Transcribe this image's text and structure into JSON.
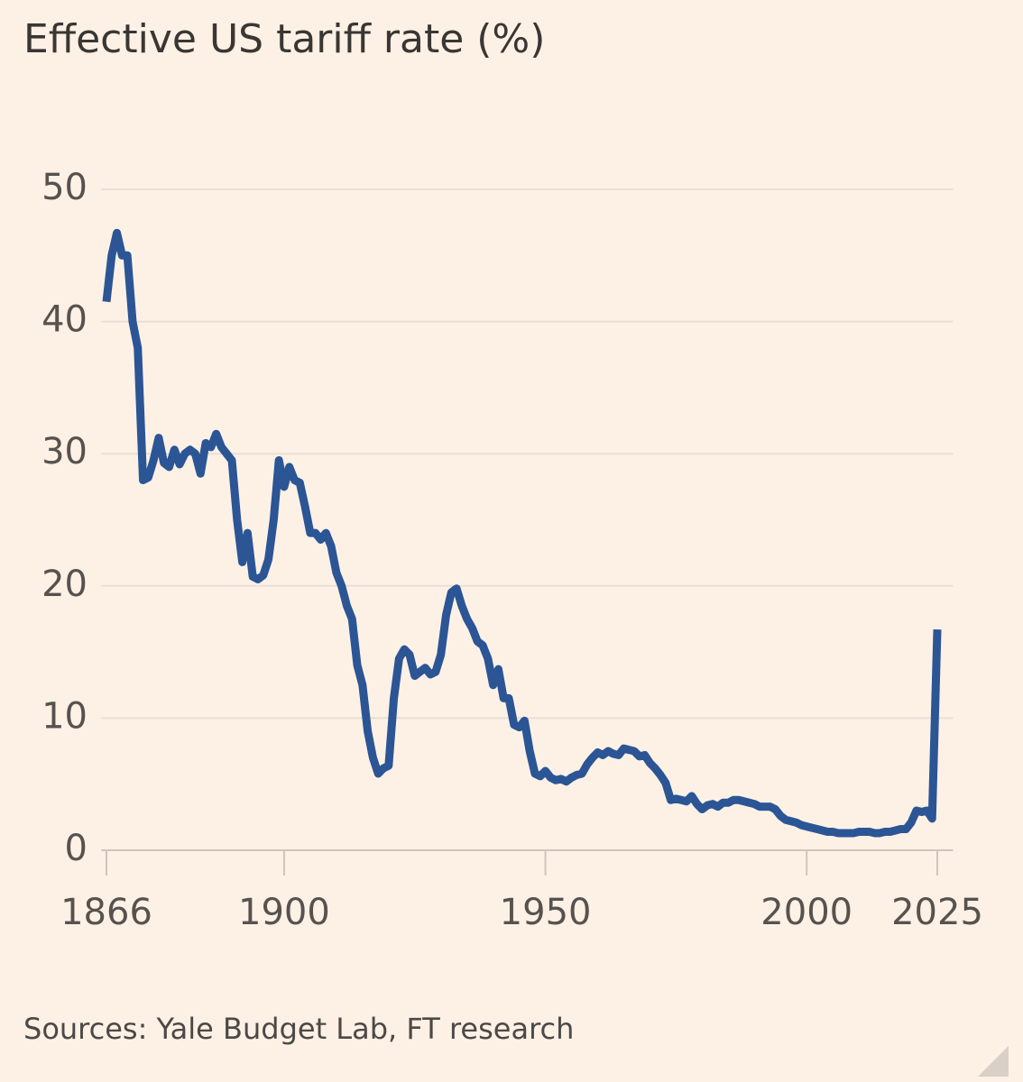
{
  "chart_data": {
    "type": "line",
    "title": "Effective US tariff rate (%)",
    "source": "Sources: Yale Budget Lab, FT research",
    "x": [
      1866,
      1867,
      1868,
      1869,
      1870,
      1871,
      1872,
      1873,
      1874,
      1875,
      1876,
      1877,
      1878,
      1879,
      1880,
      1881,
      1882,
      1883,
      1884,
      1885,
      1886,
      1887,
      1888,
      1889,
      1890,
      1891,
      1892,
      1893,
      1894,
      1895,
      1896,
      1897,
      1898,
      1899,
      1900,
      1901,
      1902,
      1903,
      1904,
      1905,
      1906,
      1907,
      1908,
      1909,
      1910,
      1911,
      1912,
      1913,
      1914,
      1915,
      1916,
      1917,
      1918,
      1919,
      1920,
      1921,
      1922,
      1923,
      1924,
      1925,
      1926,
      1927,
      1928,
      1929,
      1930,
      1931,
      1932,
      1933,
      1934,
      1935,
      1936,
      1937,
      1938,
      1939,
      1940,
      1941,
      1942,
      1943,
      1944,
      1945,
      1946,
      1947,
      1948,
      1949,
      1950,
      1951,
      1952,
      1953,
      1954,
      1955,
      1956,
      1957,
      1958,
      1959,
      1960,
      1961,
      1962,
      1963,
      1964,
      1965,
      1966,
      1967,
      1968,
      1969,
      1970,
      1971,
      1972,
      1973,
      1974,
      1975,
      1976,
      1977,
      1978,
      1979,
      1980,
      1981,
      1982,
      1983,
      1984,
      1985,
      1986,
      1987,
      1988,
      1989,
      1990,
      1991,
      1992,
      1993,
      1994,
      1995,
      1996,
      1997,
      1998,
      1999,
      2000,
      2001,
      2002,
      2003,
      2004,
      2005,
      2006,
      2007,
      2008,
      2009,
      2010,
      2011,
      2012,
      2013,
      2014,
      2015,
      2016,
      2017,
      2018,
      2019,
      2020,
      2021,
      2022,
      2023,
      2024,
      2025
    ],
    "series": [
      {
        "name": "Effective US tariff rate",
        "color": "#2b5595",
        "values": [
          41.5,
          45,
          46.7,
          45,
          45,
          40,
          38,
          28,
          28.2,
          29.5,
          31.2,
          29.3,
          29,
          30.3,
          29.2,
          30,
          30.3,
          30,
          28.5,
          30.8,
          30.5,
          31.5,
          30.5,
          30,
          29.5,
          25,
          21.8,
          24,
          20.7,
          20.5,
          20.8,
          22,
          25,
          29.5,
          27.5,
          29,
          28,
          27.8,
          26,
          24,
          24,
          23.5,
          24,
          23,
          21,
          20,
          18.5,
          17.5,
          14,
          12.5,
          9,
          7,
          5.8,
          6.2,
          6.4,
          11.5,
          14.5,
          15.2,
          14.8,
          13.2,
          13.5,
          13.8,
          13.3,
          13.5,
          14.8,
          17.8,
          19.5,
          19.8,
          18.5,
          17.5,
          16.8,
          15.8,
          15.5,
          14.5,
          12.5,
          13.7,
          11.5,
          11.5,
          9.5,
          9.3,
          9.8,
          7.5,
          5.8,
          5.6,
          6,
          5.5,
          5.3,
          5.4,
          5.2,
          5.5,
          5.7,
          5.8,
          6.5,
          7,
          7.4,
          7.2,
          7.5,
          7.3,
          7.2,
          7.7,
          7.6,
          7.5,
          7.1,
          7.2,
          6.6,
          6.2,
          5.7,
          5.1,
          3.8,
          3.9,
          3.8,
          3.7,
          4.1,
          3.5,
          3.1,
          3.4,
          3.5,
          3.3,
          3.6,
          3.6,
          3.8,
          3.8,
          3.7,
          3.6,
          3.5,
          3.3,
          3.3,
          3.3,
          3.1,
          2.6,
          2.3,
          2.2,
          2.1,
          1.9,
          1.8,
          1.7,
          1.6,
          1.5,
          1.4,
          1.4,
          1.3,
          1.3,
          1.3,
          1.3,
          1.4,
          1.4,
          1.4,
          1.3,
          1.3,
          1.4,
          1.4,
          1.5,
          1.6,
          1.6,
          2.1,
          3.0,
          2.9,
          3.0,
          2.4,
          16.7
        ]
      }
    ],
    "xlim": [
      1865,
      2028
    ],
    "xticks": [
      1866,
      1900,
      1950,
      2000,
      2025
    ],
    "ylim": [
      0,
      50
    ],
    "yticks": [
      0,
      10,
      20,
      30,
      40,
      50
    ],
    "grid": true
  }
}
